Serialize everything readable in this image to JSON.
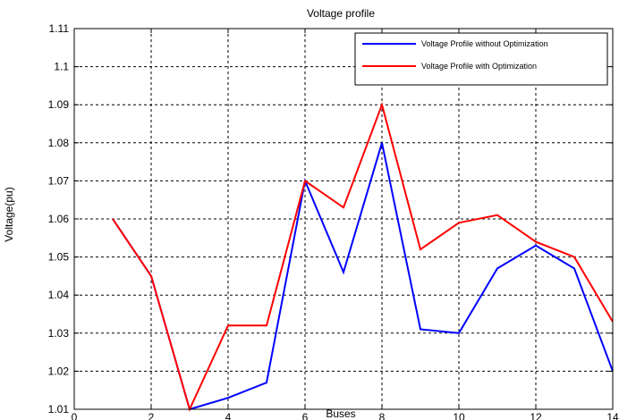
{
  "chart_data": {
    "type": "line",
    "title": "Voltage profile",
    "xlabel": "Buses",
    "ylabel": "Voltage(pu)",
    "xlim": [
      0,
      14
    ],
    "ylim": [
      1.01,
      1.11
    ],
    "xticks": [
      0,
      2,
      4,
      6,
      8,
      10,
      12,
      14
    ],
    "yticks": [
      1.01,
      1.02,
      1.03,
      1.04,
      1.05,
      1.06,
      1.07,
      1.08,
      1.09,
      1.1,
      1.11
    ],
    "ytick_labels": [
      "1.01",
      "1.02",
      "1.03",
      "1.04",
      "1.05",
      "1.06",
      "1.07",
      "1.08",
      "1.09",
      "1.1",
      "1.11"
    ],
    "grid": true,
    "legend_position": "top-right",
    "series": [
      {
        "name": "Voltage Profile without Optimization",
        "color": "#0000ff",
        "x": [
          1,
          2,
          3,
          4,
          5,
          6,
          7,
          8,
          9,
          10,
          11,
          12,
          13,
          14
        ],
        "y": [
          1.06,
          1.045,
          1.01,
          1.013,
          1.017,
          1.07,
          1.046,
          1.08,
          1.031,
          1.03,
          1.047,
          1.053,
          1.047,
          1.02
        ]
      },
      {
        "name": "Voltage Profile with Optimization",
        "color": "#ff0000",
        "x": [
          1,
          2,
          3,
          4,
          5,
          6,
          7,
          8,
          9,
          10,
          11,
          12,
          13,
          14
        ],
        "y": [
          1.06,
          1.045,
          1.01,
          1.032,
          1.032,
          1.07,
          1.063,
          1.09,
          1.052,
          1.059,
          1.061,
          1.054,
          1.05,
          1.033
        ]
      }
    ]
  }
}
